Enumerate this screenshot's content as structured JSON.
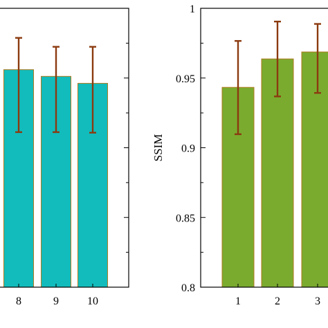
{
  "chart_data": [
    {
      "type": "bar",
      "panel": "left",
      "categories": [
        "8",
        "9",
        "10"
      ],
      "values": [
        0.956,
        0.9512,
        0.9462
      ],
      "error_low": [
        0.9112,
        0.9112,
        0.9108
      ],
      "error_high": [
        0.9788,
        0.9724,
        0.9724
      ],
      "title": "",
      "xlabel": "",
      "ylabel": "",
      "ylim": [
        0.8,
        1.0
      ],
      "bar_color": "#12bcbc",
      "bar_edge_color": "#b07a1e",
      "error_color": "#8b3a0f",
      "grid": false
    },
    {
      "type": "bar",
      "panel": "right",
      "categories": [
        "1",
        "2",
        "3"
      ],
      "values": [
        0.9433,
        0.9637,
        0.9687
      ],
      "error_low": [
        0.9097,
        0.9368,
        0.9393
      ],
      "error_high": [
        0.9766,
        0.9905,
        0.9888
      ],
      "title": "",
      "xlabel": "",
      "ylabel": "SSIM",
      "ylim": [
        0.8,
        1.0
      ],
      "yticks": [
        "0.8",
        "0.85",
        "0.9",
        "0.95",
        "1"
      ],
      "bar_color": "#7aab2f",
      "bar_edge_color": "#b07a1e",
      "error_color": "#8b3a0f",
      "grid": false
    }
  ]
}
